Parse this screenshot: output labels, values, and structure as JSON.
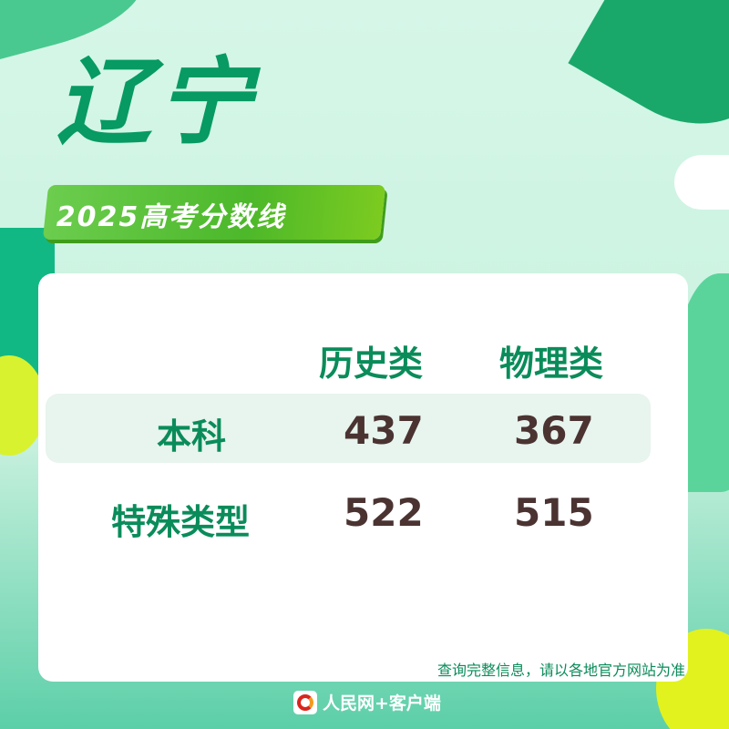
{
  "title": "辽宁",
  "subtitle": "2025高考分数线",
  "table": {
    "columns": [
      "历史类",
      "物理类"
    ],
    "rows": [
      {
        "label": "本科",
        "values": [
          "437",
          "367"
        ]
      },
      {
        "label": "特殊类型",
        "values": [
          "522",
          "515"
        ]
      }
    ]
  },
  "note": "查询完整信息，请以各地官方网站为准",
  "footer": {
    "brand": "人民网+客户端",
    "icon": "people-daily-logo-icon"
  },
  "colors": {
    "accent": "#079a62",
    "number": "#4a3331",
    "banner": "#4cb82a",
    "highlight_row": "#e8f4ee"
  }
}
